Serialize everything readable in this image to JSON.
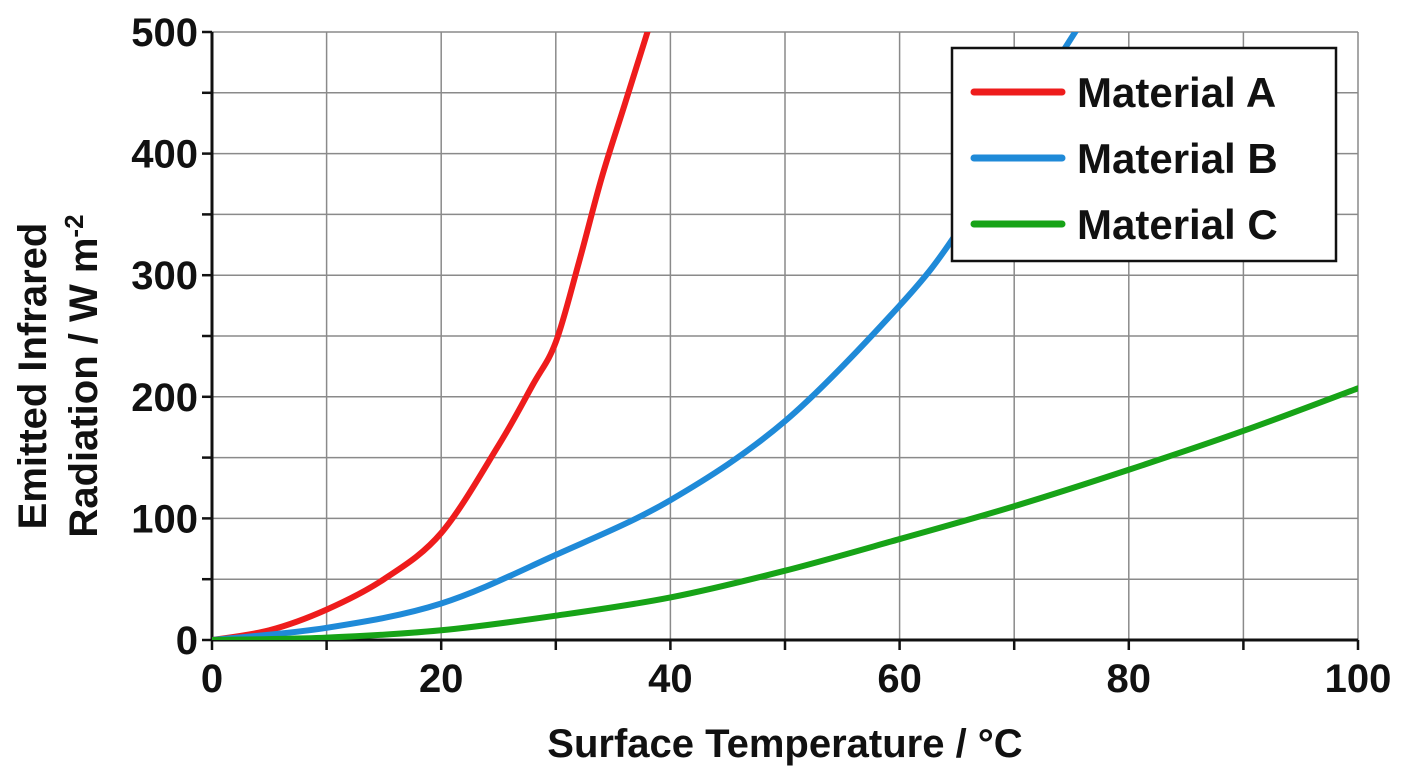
{
  "chart_data": {
    "type": "line",
    "xlabel": "Surface Temperature / °C",
    "ylabel_line1": "Emitted Infrared",
    "ylabel_line2": "Radiation / W m",
    "ylabel_superscript": "-2",
    "xlim": [
      0,
      100
    ],
    "ylim": [
      0,
      500
    ],
    "x_ticks": [
      0,
      20,
      40,
      60,
      80,
      100
    ],
    "y_ticks": [
      0,
      100,
      200,
      300,
      400,
      500
    ],
    "x_minor_step": 10,
    "y_minor_step": 50,
    "grid": true,
    "legend_position": "top-right",
    "series": [
      {
        "name": "Material A",
        "color": "#ee1c1c",
        "x": [
          0,
          5,
          10,
          15,
          20,
          25,
          28,
          30,
          32,
          34,
          36,
          38
        ],
        "y": [
          0,
          8,
          25,
          50,
          88,
          160,
          210,
          245,
          310,
          380,
          440,
          500
        ]
      },
      {
        "name": "Material B",
        "color": "#1f8ad8",
        "x": [
          0,
          10,
          20,
          30,
          40,
          50,
          60,
          65,
          70,
          73,
          76
        ],
        "y": [
          0,
          10,
          30,
          70,
          115,
          180,
          275,
          335,
          415,
          465,
          510
        ]
      },
      {
        "name": "Material C",
        "color": "#17a317",
        "x": [
          0,
          10,
          20,
          30,
          40,
          50,
          60,
          70,
          80,
          90,
          100
        ],
        "y": [
          0,
          2,
          8,
          20,
          35,
          57,
          83,
          110,
          140,
          172,
          207
        ]
      }
    ]
  }
}
